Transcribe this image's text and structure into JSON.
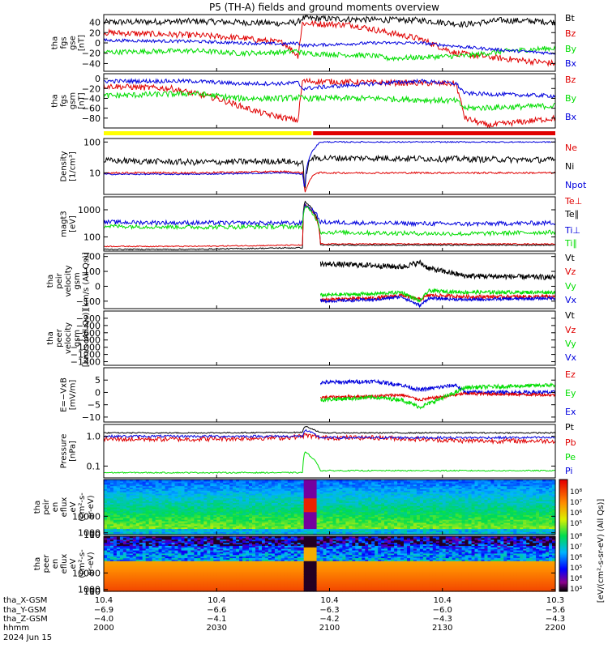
{
  "title": "P5 (TH-A) fields and ground moments overview",
  "colors": {
    "black": "#000000",
    "red": "#e00000",
    "green": "#00dd00",
    "blue": "#0000dd",
    "yellow": "#ffff00",
    "bar_red": "#e00000"
  },
  "chart_data": [
    {
      "type": "line",
      "name": "fgs_gse",
      "ylabel": [
        "tha",
        "fgs",
        "gse",
        "[nT]"
      ],
      "ylim": [
        -55,
        55
      ],
      "ticks": [
        40,
        20,
        0,
        -20,
        -40
      ],
      "tick_labels": [
        "40",
        "20",
        "0",
        "−20",
        "−40"
      ],
      "legend": [
        {
          "name": "Bt",
          "color": "#000000"
        },
        {
          "name": "Bz",
          "color": "#e00000"
        },
        {
          "name": "By",
          "color": "#00dd00"
        },
        {
          "name": "Bx",
          "color": "#0000dd"
        }
      ],
      "series": [
        {
          "name": "Bt",
          "color": "#000000",
          "t": [
            0,
            20,
            30,
            40,
            43,
            44,
            60,
            70,
            80,
            88,
            96,
            100
          ],
          "y": [
            40,
            42,
            40,
            38,
            40,
            48,
            45,
            44,
            36,
            44,
            42,
            40
          ],
          "noise": 6
        },
        {
          "name": "Bz",
          "color": "#e00000",
          "t": [
            0,
            20,
            30,
            40,
            43,
            44,
            55,
            63,
            70,
            78,
            88,
            100
          ],
          "y": [
            20,
            15,
            10,
            0,
            -25,
            38,
            35,
            20,
            8,
            -20,
            -30,
            -40
          ],
          "noise": 6
        },
        {
          "name": "By",
          "color": "#00dd00",
          "t": [
            0,
            20,
            30,
            40,
            43,
            44,
            60,
            63,
            80,
            90,
            100
          ],
          "y": [
            -18,
            -15,
            -20,
            -18,
            -15,
            -20,
            -25,
            -30,
            -25,
            -15,
            -10
          ],
          "noise": 5
        },
        {
          "name": "Bx",
          "color": "#0000dd",
          "t": [
            0,
            20,
            30,
            40,
            43,
            44,
            60,
            70,
            80,
            90,
            100
          ],
          "y": [
            5,
            3,
            0,
            -2,
            0,
            -5,
            0,
            0,
            -8,
            -15,
            -20
          ],
          "noise": 3
        }
      ]
    },
    {
      "type": "line",
      "name": "fgs_gsm",
      "ylabel": [
        "tha",
        "fgs",
        "gsm",
        "[nT]"
      ],
      "ylim": [
        -100,
        10
      ],
      "ticks": [
        0,
        -20,
        -40,
        -60,
        -80
      ],
      "tick_labels": [
        "0",
        "−20",
        "−40",
        "−60",
        "−80"
      ],
      "legend": [
        {
          "name": "Bz",
          "color": "#e00000"
        },
        {
          "name": "By",
          "color": "#00dd00"
        },
        {
          "name": "Bx",
          "color": "#0000dd"
        }
      ],
      "series": [
        {
          "name": "Bz",
          "color": "#e00000",
          "t": [
            0,
            15,
            25,
            35,
            43,
            44,
            60,
            78,
            80,
            85,
            100
          ],
          "y": [
            -15,
            -20,
            -40,
            -70,
            -85,
            -5,
            -8,
            -10,
            -80,
            -95,
            -80
          ],
          "noise": 6
        },
        {
          "name": "By",
          "color": "#00dd00",
          "t": [
            0,
            20,
            30,
            40,
            43,
            44,
            60,
            78,
            80,
            100
          ],
          "y": [
            -35,
            -30,
            -40,
            -40,
            -38,
            -40,
            -40,
            -45,
            -60,
            -55
          ],
          "noise": 6
        },
        {
          "name": "Bx",
          "color": "#0000dd",
          "t": [
            0,
            20,
            30,
            40,
            43,
            44,
            60,
            70,
            78,
            80,
            100
          ],
          "y": [
            -5,
            -5,
            -10,
            -10,
            -8,
            -20,
            -10,
            -5,
            -10,
            -30,
            -35
          ],
          "noise": 4
        }
      ]
    },
    {
      "type": "line",
      "name": "density",
      "ylabel": [
        "Density",
        "[1/cm³]"
      ],
      "log": true,
      "ylim": [
        2,
        130
      ],
      "ticks": [
        100,
        10
      ],
      "tick_labels": [
        "100",
        "10"
      ],
      "legend": [
        {
          "name": "Ne",
          "color": "#e00000"
        },
        {
          "name": "Ni",
          "color": "#000000"
        },
        {
          "name": "Npot",
          "color": "#0000dd"
        }
      ],
      "series": [
        {
          "name": "Ni",
          "color": "#000000",
          "t": [
            0,
            20,
            40,
            44,
            44.5,
            46,
            60,
            80,
            100
          ],
          "y": [
            25,
            22,
            24,
            20,
            2,
            30,
            30,
            28,
            26
          ],
          "noise": 0.1
        },
        {
          "name": "Ne",
          "color": "#e00000",
          "t": [
            0,
            20,
            40,
            44,
            44.5,
            47,
            60,
            80,
            100
          ],
          "y": [
            10,
            10,
            11,
            10,
            2,
            10,
            10,
            10,
            10
          ],
          "noise": 0.03
        },
        {
          "name": "Npot",
          "color": "#0000dd",
          "t": [
            0,
            20,
            40,
            44,
            44.5,
            48,
            60,
            80,
            100
          ],
          "y": [
            9,
            9,
            10,
            9,
            2,
            100,
            100,
            100,
            100
          ],
          "noise": 0.02
        }
      ]
    },
    {
      "type": "line",
      "name": "temperature",
      "ylabel": [
        "magt3",
        "[eV]"
      ],
      "log": true,
      "ylim": [
        30,
        3000
      ],
      "ticks": [
        1000,
        100
      ],
      "tick_labels": [
        "1000",
        "100"
      ],
      "legend": [
        {
          "name": "Te⊥",
          "color": "#e00000"
        },
        {
          "name": "Te∥",
          "color": "#000000"
        },
        {
          "name": "Ti⊥",
          "color": "#0000dd"
        },
        {
          "name": "Ti∥",
          "color": "#00dd00"
        }
      ],
      "series": [
        {
          "name": "Te∥",
          "color": "#000000",
          "t": [
            0,
            20,
            44,
            44.5,
            48,
            60,
            100
          ],
          "y": [
            35,
            35,
            40,
            2000,
            50,
            50,
            50
          ],
          "noise": 0.02
        },
        {
          "name": "Te⊥",
          "color": "#e00000",
          "t": [
            0,
            20,
            44,
            44.5,
            48,
            60,
            100
          ],
          "y": [
            45,
            45,
            50,
            1600,
            55,
            55,
            55
          ],
          "noise": 0.02
        },
        {
          "name": "Ti⊥",
          "color": "#0000dd",
          "t": [
            0,
            20,
            44,
            44.5,
            48,
            60,
            80,
            100
          ],
          "y": [
            350,
            330,
            320,
            1500,
            350,
            320,
            300,
            330
          ],
          "noise": 0.08
        },
        {
          "name": "Ti∥",
          "color": "#00dd00",
          "t": [
            0,
            20,
            44,
            44.5,
            48,
            60,
            80,
            100
          ],
          "y": [
            250,
            230,
            240,
            1300,
            150,
            140,
            130,
            150
          ],
          "noise": 0.08
        }
      ]
    },
    {
      "type": "line",
      "name": "peir_velocity",
      "ylabel": [
        "tha",
        "peir",
        "velocity",
        "gsm",
        "[km/s (All Qs)]"
      ],
      "ylim": [
        -150,
        220
      ],
      "ticks": [
        200,
        100,
        0,
        -100
      ],
      "tick_labels": [
        "200",
        "100",
        "0",
        "−100"
      ],
      "legend": [
        {
          "name": "Vt",
          "color": "#000000"
        },
        {
          "name": "Vz",
          "color": "#e00000"
        },
        {
          "name": "Vy",
          "color": "#00dd00"
        },
        {
          "name": "Vx",
          "color": "#0000dd"
        }
      ],
      "series": [
        {
          "name": "Vt",
          "color": "#000000",
          "t": [
            48,
            60,
            66,
            70,
            72,
            80,
            100
          ],
          "y": [
            150,
            140,
            130,
            160,
            120,
            70,
            60
          ],
          "noise": 18
        },
        {
          "name": "Vz",
          "color": "#e00000",
          "t": [
            48,
            60,
            66,
            70,
            72,
            80,
            100
          ],
          "y": [
            -90,
            -80,
            -60,
            -90,
            -60,
            -70,
            -70
          ],
          "noise": 12
        },
        {
          "name": "Vy",
          "color": "#00dd00",
          "t": [
            48,
            60,
            66,
            70,
            72,
            80,
            100
          ],
          "y": [
            -60,
            -50,
            -40,
            -100,
            -30,
            -40,
            -40
          ],
          "noise": 12
        },
        {
          "name": "Vx",
          "color": "#0000dd",
          "t": [
            48,
            60,
            66,
            70,
            72,
            80,
            100
          ],
          "y": [
            -100,
            -90,
            -70,
            -130,
            -80,
            -90,
            -80
          ],
          "noise": 10
        }
      ]
    },
    {
      "type": "line",
      "name": "peer_velocity",
      "ylabel": [
        "tha",
        "peer",
        "velocity",
        "gsm",
        "[km/s (All Qs)]"
      ],
      "ylim": [
        -1500,
        0
      ],
      "ticks": [
        -200,
        -400,
        -600,
        -800,
        -1000,
        -1200,
        -1400
      ],
      "tick_labels": [
        "−200",
        "−400",
        "−600",
        "−800",
        "−1000",
        "−1200",
        "−1400"
      ],
      "legend": [
        {
          "name": "Vt",
          "color": "#000000"
        },
        {
          "name": "Vz",
          "color": "#e00000"
        },
        {
          "name": "Vy",
          "color": "#00dd00"
        },
        {
          "name": "Vx",
          "color": "#0000dd"
        }
      ],
      "series": []
    },
    {
      "type": "line",
      "name": "efield",
      "ylabel": [
        "E=−VxB",
        "[mV/m]"
      ],
      "ylim": [
        -12,
        10
      ],
      "ticks": [
        5,
        0,
        -5,
        -10
      ],
      "tick_labels": [
        "5",
        "0",
        "−5",
        "−10"
      ],
      "legend": [
        {
          "name": "Ez",
          "color": "#e00000"
        },
        {
          "name": "Ey",
          "color": "#00dd00"
        },
        {
          "name": "Ex",
          "color": "#0000dd"
        }
      ],
      "series": [
        {
          "name": "Ex",
          "color": "#0000dd",
          "t": [
            48,
            60,
            66,
            70,
            78,
            80,
            100
          ],
          "y": [
            4,
            4.5,
            3,
            1,
            3,
            0,
            0
          ],
          "noise": 0.8
        },
        {
          "name": "Ez",
          "color": "#e00000",
          "t": [
            48,
            60,
            66,
            70,
            78,
            80,
            100
          ],
          "y": [
            -2,
            -1.5,
            -1,
            -3,
            -1,
            -0.5,
            -1
          ],
          "noise": 0.6
        },
        {
          "name": "Ey",
          "color": "#00dd00",
          "t": [
            48,
            60,
            66,
            70,
            78,
            80,
            100
          ],
          "y": [
            -3,
            -2,
            -3,
            -6,
            0,
            2,
            3
          ],
          "noise": 0.8
        }
      ]
    },
    {
      "type": "line",
      "name": "pressure",
      "ylabel": [
        "Pressure",
        "[nPa]"
      ],
      "log": true,
      "ylim": [
        0.04,
        2.5
      ],
      "ticks": [
        1.0,
        0.1
      ],
      "tick_labels": [
        "1.0",
        "0.1"
      ],
      "legend": [
        {
          "name": "Pt",
          "color": "#000000"
        },
        {
          "name": "Pb",
          "color": "#e00000"
        },
        {
          "name": "Pe",
          "color": "#00dd00"
        },
        {
          "name": "Pi",
          "color": "#0000dd"
        }
      ],
      "series": [
        {
          "name": "Pt",
          "color": "#000000",
          "t": [
            0,
            20,
            44,
            44.5,
            48,
            60,
            100
          ],
          "y": [
            1.3,
            1.3,
            1.35,
            2.2,
            1.3,
            1.3,
            1.3
          ],
          "noise": 0.02
        },
        {
          "name": "Pb",
          "color": "#e00000",
          "t": [
            0,
            20,
            40,
            44,
            44.5,
            48,
            60,
            80,
            100
          ],
          "y": [
            0.8,
            0.8,
            0.9,
            1.0,
            1.1,
            0.9,
            0.9,
            0.7,
            0.7
          ],
          "noise": 0.08
        },
        {
          "name": "Pi",
          "color": "#0000dd",
          "t": [
            0,
            20,
            44,
            44.5,
            48,
            60,
            100
          ],
          "y": [
            1.0,
            1.0,
            1.0,
            1.6,
            0.9,
            0.9,
            0.9
          ],
          "noise": 0.04
        },
        {
          "name": "Pe",
          "color": "#00dd00",
          "t": [
            0,
            20,
            44,
            44.5,
            48,
            60,
            100
          ],
          "y": [
            0.06,
            0.06,
            0.06,
            0.3,
            0.07,
            0.07,
            0.07
          ],
          "noise": 0.02
        }
      ]
    },
    {
      "type": "heatmap",
      "name": "peir_eflux",
      "ylabel": [
        "tha",
        "peir",
        "en",
        "eflux",
        "eV",
        "(cm²-s-",
        "sr-eV)"
      ],
      "ylim": [
        7,
        30000
      ],
      "ticks": [
        10000,
        1000,
        100,
        10
      ],
      "tick_labels": [
        "10000",
        "1000",
        "100",
        "10"
      ]
    },
    {
      "type": "heatmap",
      "name": "peer_eflux",
      "ylabel": [
        "tha",
        "peer",
        "en",
        "eflux",
        "eV",
        "(cm²-s-",
        "sr-eV)"
      ],
      "ylim": [
        7,
        30000
      ],
      "ticks": [
        10000,
        1000,
        100,
        10
      ],
      "tick_labels": [
        "10000",
        "1000",
        "100",
        "10"
      ]
    }
  ],
  "colorbar": {
    "label": "[eV/(cm²-s-sr-eV) (All Qs)]",
    "upper_ticks": [
      "10⁸",
      "10⁷",
      "10⁶",
      "10⁵"
    ],
    "lower_ticks": [
      "10⁸",
      "10⁷",
      "10⁶",
      "10⁵",
      "10⁴",
      "10³"
    ]
  },
  "status_bar": {
    "yellow_end_fraction": 0.46
  },
  "x_axis": {
    "row_labels": [
      "tha_X-GSM",
      "tha_Y-GSM",
      "tha_Z-GSM",
      "hhmm",
      "2024 Jun 15"
    ],
    "ticks": [
      {
        "x": "10.4",
        "y": "−6.9",
        "z": "−4.0",
        "hhmm": "2000"
      },
      {
        "x": "10.4",
        "y": "−6.6",
        "z": "−4.1",
        "hhmm": "2030"
      },
      {
        "x": "10.4",
        "y": "−6.3",
        "z": "−4.2",
        "hhmm": "2100"
      },
      {
        "x": "10.4",
        "y": "−6.0",
        "z": "−4.3",
        "hhmm": "2130"
      },
      {
        "x": "10.3",
        "y": "−5.6",
        "z": "−4.3",
        "hhmm": "2200"
      }
    ]
  }
}
